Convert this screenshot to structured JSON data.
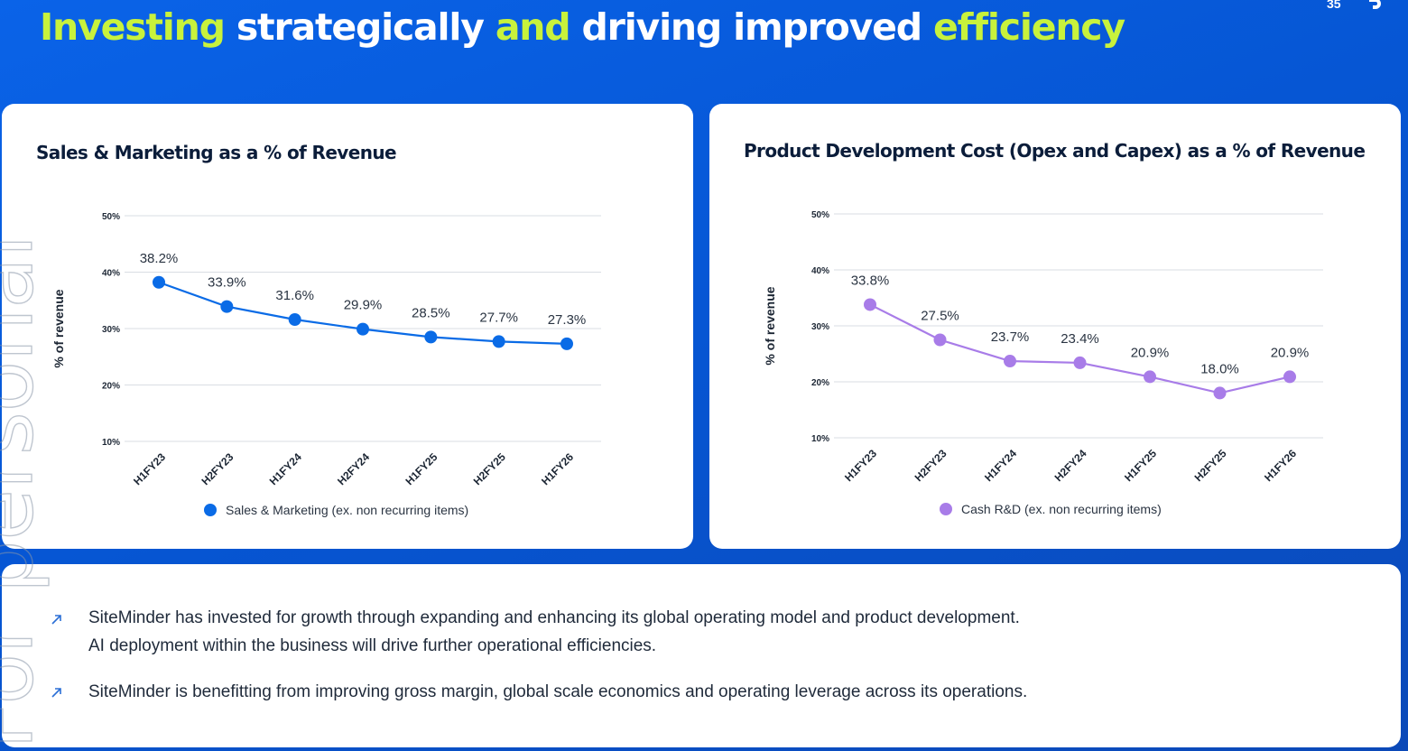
{
  "page": {
    "title_parts": [
      {
        "text": "Investing",
        "highlight": true
      },
      {
        "text": " strategically ",
        "highlight": false
      },
      {
        "text": "and",
        "highlight": true
      },
      {
        "text": " driving improved ",
        "highlight": false
      },
      {
        "text": "efficiency",
        "highlight": true
      }
    ],
    "page_number": "35",
    "colors": {
      "highlight": "#c8f23c",
      "background": "#0656d4",
      "blue_series": "#0a6be6",
      "purple_series": "#a87ce8"
    }
  },
  "chart_data": [
    {
      "type": "line",
      "title": "Sales & Marketing as a % of Revenue",
      "ylabel": "% of revenue",
      "xlabel": "",
      "categories": [
        "H1FY23",
        "H2FY23",
        "H1FY24",
        "H2FY24",
        "H1FY25",
        "H2FY25",
        "H1FY26"
      ],
      "series": [
        {
          "name": "Sales & Marketing (ex. non recurring items)",
          "values": [
            38.2,
            33.9,
            31.6,
            29.9,
            28.5,
            27.7,
            27.3
          ],
          "labels": [
            "38.2%",
            "33.9%",
            "31.6%",
            "29.9%",
            "28.5%",
            "27.7%",
            "27.3%"
          ],
          "color": "#0a6be6"
        }
      ],
      "yticks": [
        10,
        20,
        30,
        40,
        50
      ],
      "ytick_labels": [
        "10%",
        "20%",
        "30%",
        "40%",
        "50%"
      ],
      "ylim": [
        10,
        50
      ],
      "grid": true,
      "legend": "bottom"
    },
    {
      "type": "line",
      "title": "Product Development Cost (Opex and Capex) as a % of Revenue",
      "ylabel": "% of revenue",
      "xlabel": "",
      "categories": [
        "H1FY23",
        "H2FY23",
        "H1FY24",
        "H2FY24",
        "H1FY25",
        "H2FY25",
        "H1FY26"
      ],
      "series": [
        {
          "name": "Cash R&D (ex. non recurring items)",
          "values": [
            33.8,
            27.5,
            23.7,
            23.4,
            20.9,
            18.0,
            20.9
          ],
          "labels": [
            "33.8%",
            "27.5%",
            "23.7%",
            "23.4%",
            "20.9%",
            "18.0%",
            "20.9%"
          ],
          "color": "#a87ce8"
        }
      ],
      "yticks": [
        10,
        20,
        30,
        40,
        50
      ],
      "ytick_labels": [
        "10%",
        "20%",
        "30%",
        "40%",
        "50%"
      ],
      "ylim": [
        10,
        50
      ],
      "grid": true,
      "legend": "bottom"
    }
  ],
  "commentary": {
    "bullets": [
      {
        "lines": [
          "SiteMinder has invested for growth through expanding and enhancing its global operating model and product development.",
          "AI deployment within the business will drive further operational efficiencies."
        ],
        "icon": "arrow-up-right-icon"
      },
      {
        "lines": [
          "SiteMinder is benefitting from improving gross margin, global scale economics and operating leverage across its operations."
        ],
        "icon": "arrow-up-right-icon"
      }
    ]
  },
  "watermark": {
    "text": "For personal use only"
  }
}
